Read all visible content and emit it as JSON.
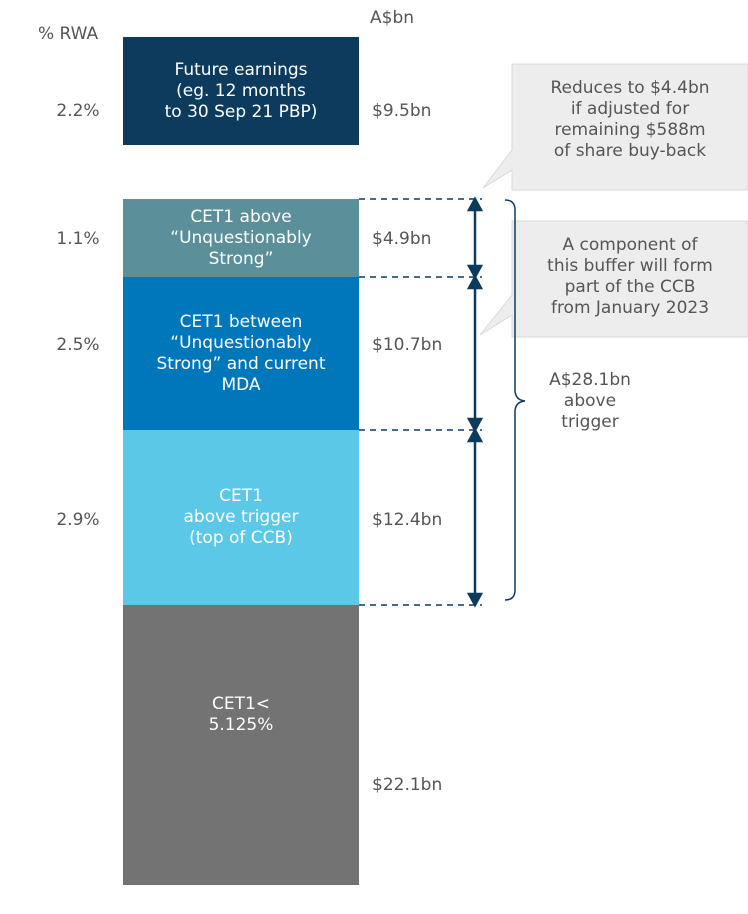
{
  "header": {
    "pct_label": "% RWA",
    "amount_label": "A$bn"
  },
  "blocks": [
    {
      "label": "Future earnings\n(eg. 12 months\nto 30 Sep 21 PBP)",
      "pct": "2.2%",
      "amount": "$9.5bn"
    },
    {
      "label": "CET1 above\n“Unquestionably\nStrong”",
      "pct": "1.1%",
      "amount": "$4.9bn"
    },
    {
      "label": "CET1 between\n“Unquestionably\nStrong” and current\nMDA",
      "pct": "2.5%",
      "amount": "$10.7bn"
    },
    {
      "label": "CET1\nabove trigger\n(top of CCB)",
      "pct": "2.9%",
      "amount": "$12.4bn"
    },
    {
      "label": "CET1<\n5.125%",
      "pct": "",
      "amount": "$22.1bn"
    }
  ],
  "callouts": [
    "Reduces to $4.4bn\nif adjusted for\nremaining $588m\nof share buy-back",
    "A component of\nthis buffer will form\npart of the CCB\nfrom January 2023"
  ],
  "bracket_label": "A$28.1bn\nabove\ntrigger"
}
